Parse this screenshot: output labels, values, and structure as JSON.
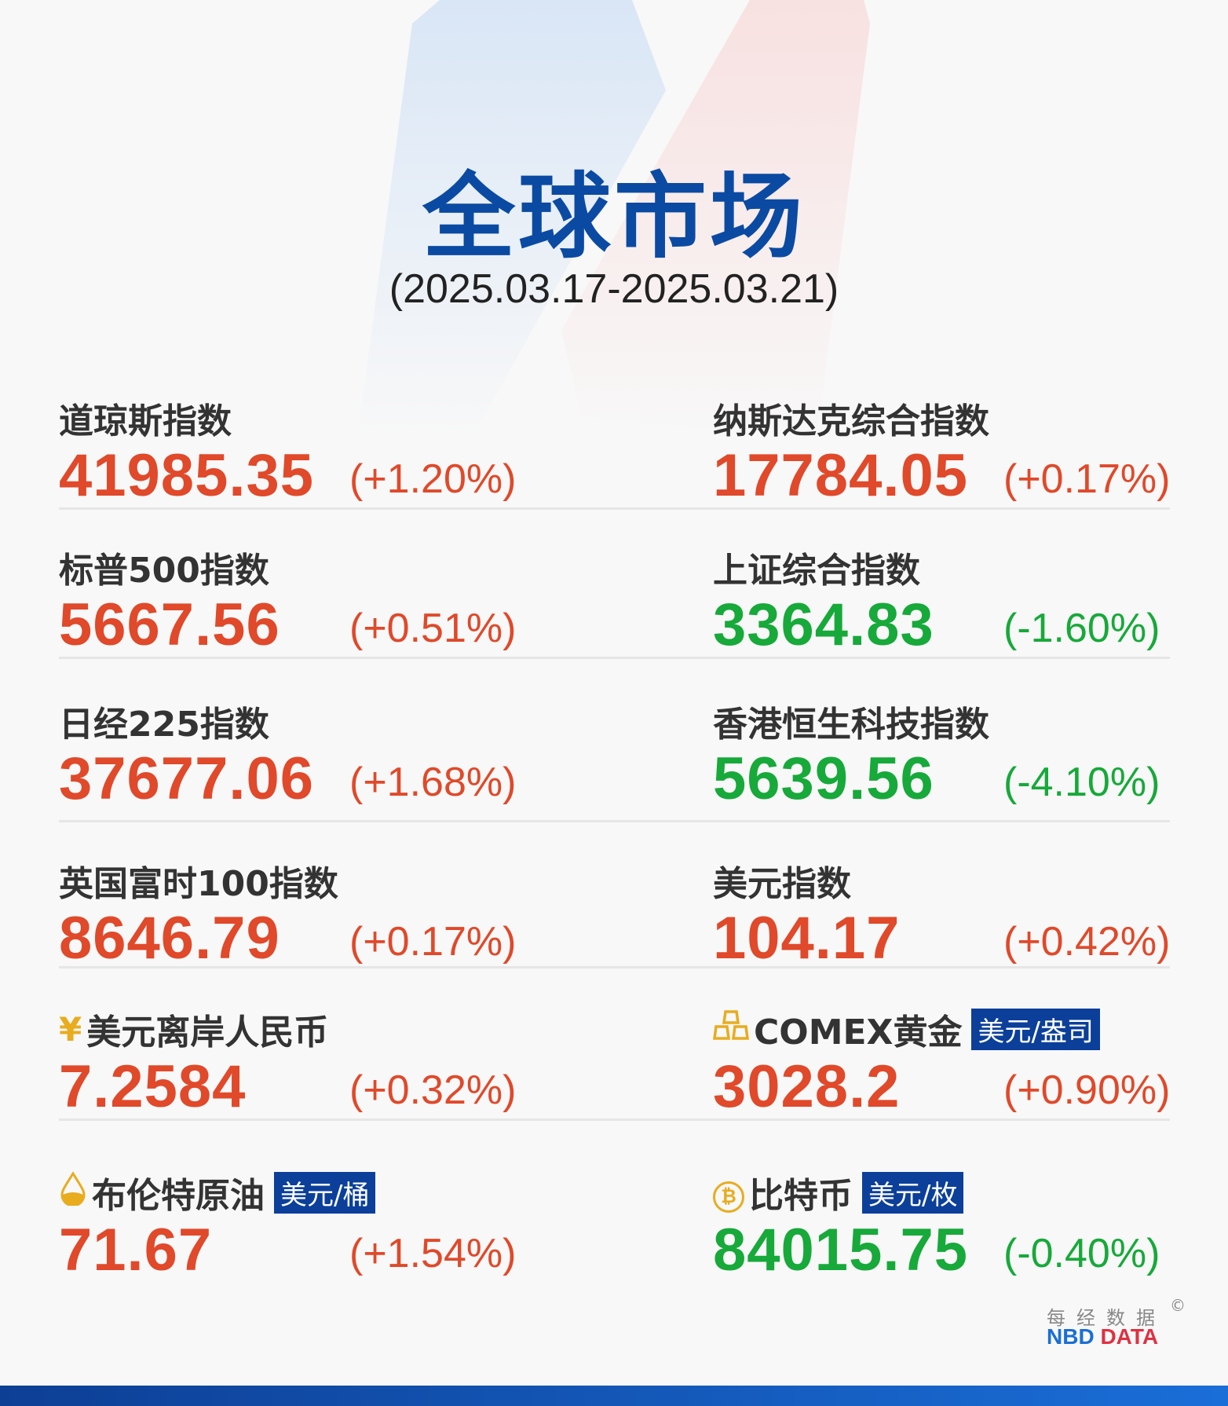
{
  "header": {
    "title": "全球市场",
    "date_range": "(2025.03.17-2025.03.21)"
  },
  "colors": {
    "up": "#e0492a",
    "down": "#17a93a",
    "title": "#0b4aa2",
    "unit_badge": "#0b3f9a",
    "icon": "#e8ac1e"
  },
  "items": [
    {
      "label": "道琼斯指数",
      "value": "41985.35",
      "change": "(+1.20%)",
      "trend": "up"
    },
    {
      "label": "纳斯达克综合指数",
      "value": "17784.05",
      "change": "(+0.17%)",
      "trend": "up"
    },
    {
      "label": "标普500指数",
      "value": "5667.56",
      "change": "(+0.51%)",
      "trend": "up"
    },
    {
      "label": "上证综合指数",
      "value": "3364.83",
      "change": "(-1.60%)",
      "trend": "down"
    },
    {
      "label": "日经225指数",
      "value": "37677.06",
      "change": "(+1.68%)",
      "trend": "up"
    },
    {
      "label": "香港恒生科技指数",
      "value": "5639.56",
      "change": "(-4.10%)",
      "trend": "down"
    },
    {
      "label": "英国富时100指数",
      "value": "8646.79",
      "change": "(+0.17%)",
      "trend": "up"
    },
    {
      "label": "美元指数",
      "value": "104.17",
      "change": "(+0.42%)",
      "trend": "up"
    },
    {
      "label": "美元离岸人民币",
      "icon": "yuan-icon",
      "value": "7.2584",
      "change": "(+0.32%)",
      "trend": "up"
    },
    {
      "label": "COMEX黄金",
      "icon": "gold-bars-icon",
      "unit": "美元/盎司",
      "value": "3028.2",
      "change": "(+0.90%)",
      "trend": "up"
    },
    {
      "label": "布伦特原油",
      "icon": "oil-drop-icon",
      "unit": "美元/桶",
      "value": "71.67",
      "change": "(+1.54%)",
      "trend": "up"
    },
    {
      "label": "比特币",
      "icon": "bitcoin-icon",
      "unit": "美元/枚",
      "value": "84015.75",
      "change": "(-0.40%)",
      "trend": "down"
    }
  ],
  "footer": {
    "logo_cn": "每经数据",
    "logo_nbd": "NBD",
    "logo_data": "DATA",
    "copyright": "©"
  }
}
